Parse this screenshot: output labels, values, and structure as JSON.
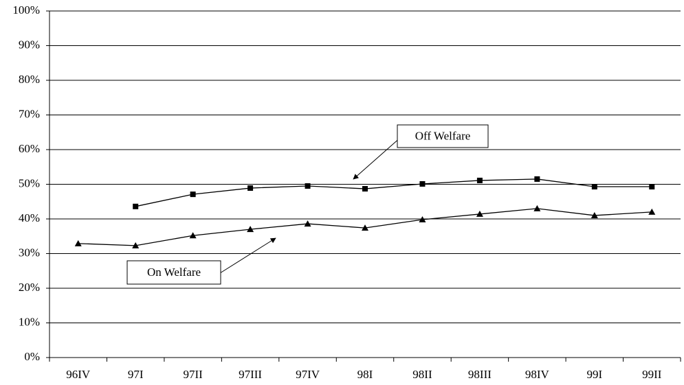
{
  "chart_data": {
    "type": "line",
    "categories": [
      "96IV",
      "97I",
      "97II",
      "97III",
      "97IV",
      "98I",
      "98II",
      "98III",
      "98IV",
      "99I",
      "99II"
    ],
    "series": [
      {
        "name": "Off Welfare",
        "color": "#000000",
        "marker": "square",
        "values": [
          null,
          43.6,
          47.1,
          48.9,
          49.5,
          48.7,
          50.1,
          51.1,
          51.5,
          49.3,
          49.3
        ]
      },
      {
        "name": "On Welfare",
        "color": "#000000",
        "marker": "triangle",
        "values": [
          32.9,
          32.3,
          35.2,
          37.0,
          38.6,
          37.4,
          39.8,
          41.4,
          43.0,
          41.0,
          42.0
        ]
      }
    ],
    "ylim": [
      0,
      100
    ],
    "yticks": [
      {
        "value": 0,
        "label": "0%"
      },
      {
        "value": 10,
        "label": "10%"
      },
      {
        "value": 20,
        "label": "20%"
      },
      {
        "value": 30,
        "label": "30%"
      },
      {
        "value": 40,
        "label": "40%"
      },
      {
        "value": 50,
        "label": "50%"
      },
      {
        "value": 60,
        "label": "60%"
      },
      {
        "value": 70,
        "label": "70%"
      },
      {
        "value": 80,
        "label": "80%"
      },
      {
        "value": 90,
        "label": "90%"
      },
      {
        "value": 100,
        "label": "100%"
      }
    ],
    "grid": true
  }
}
